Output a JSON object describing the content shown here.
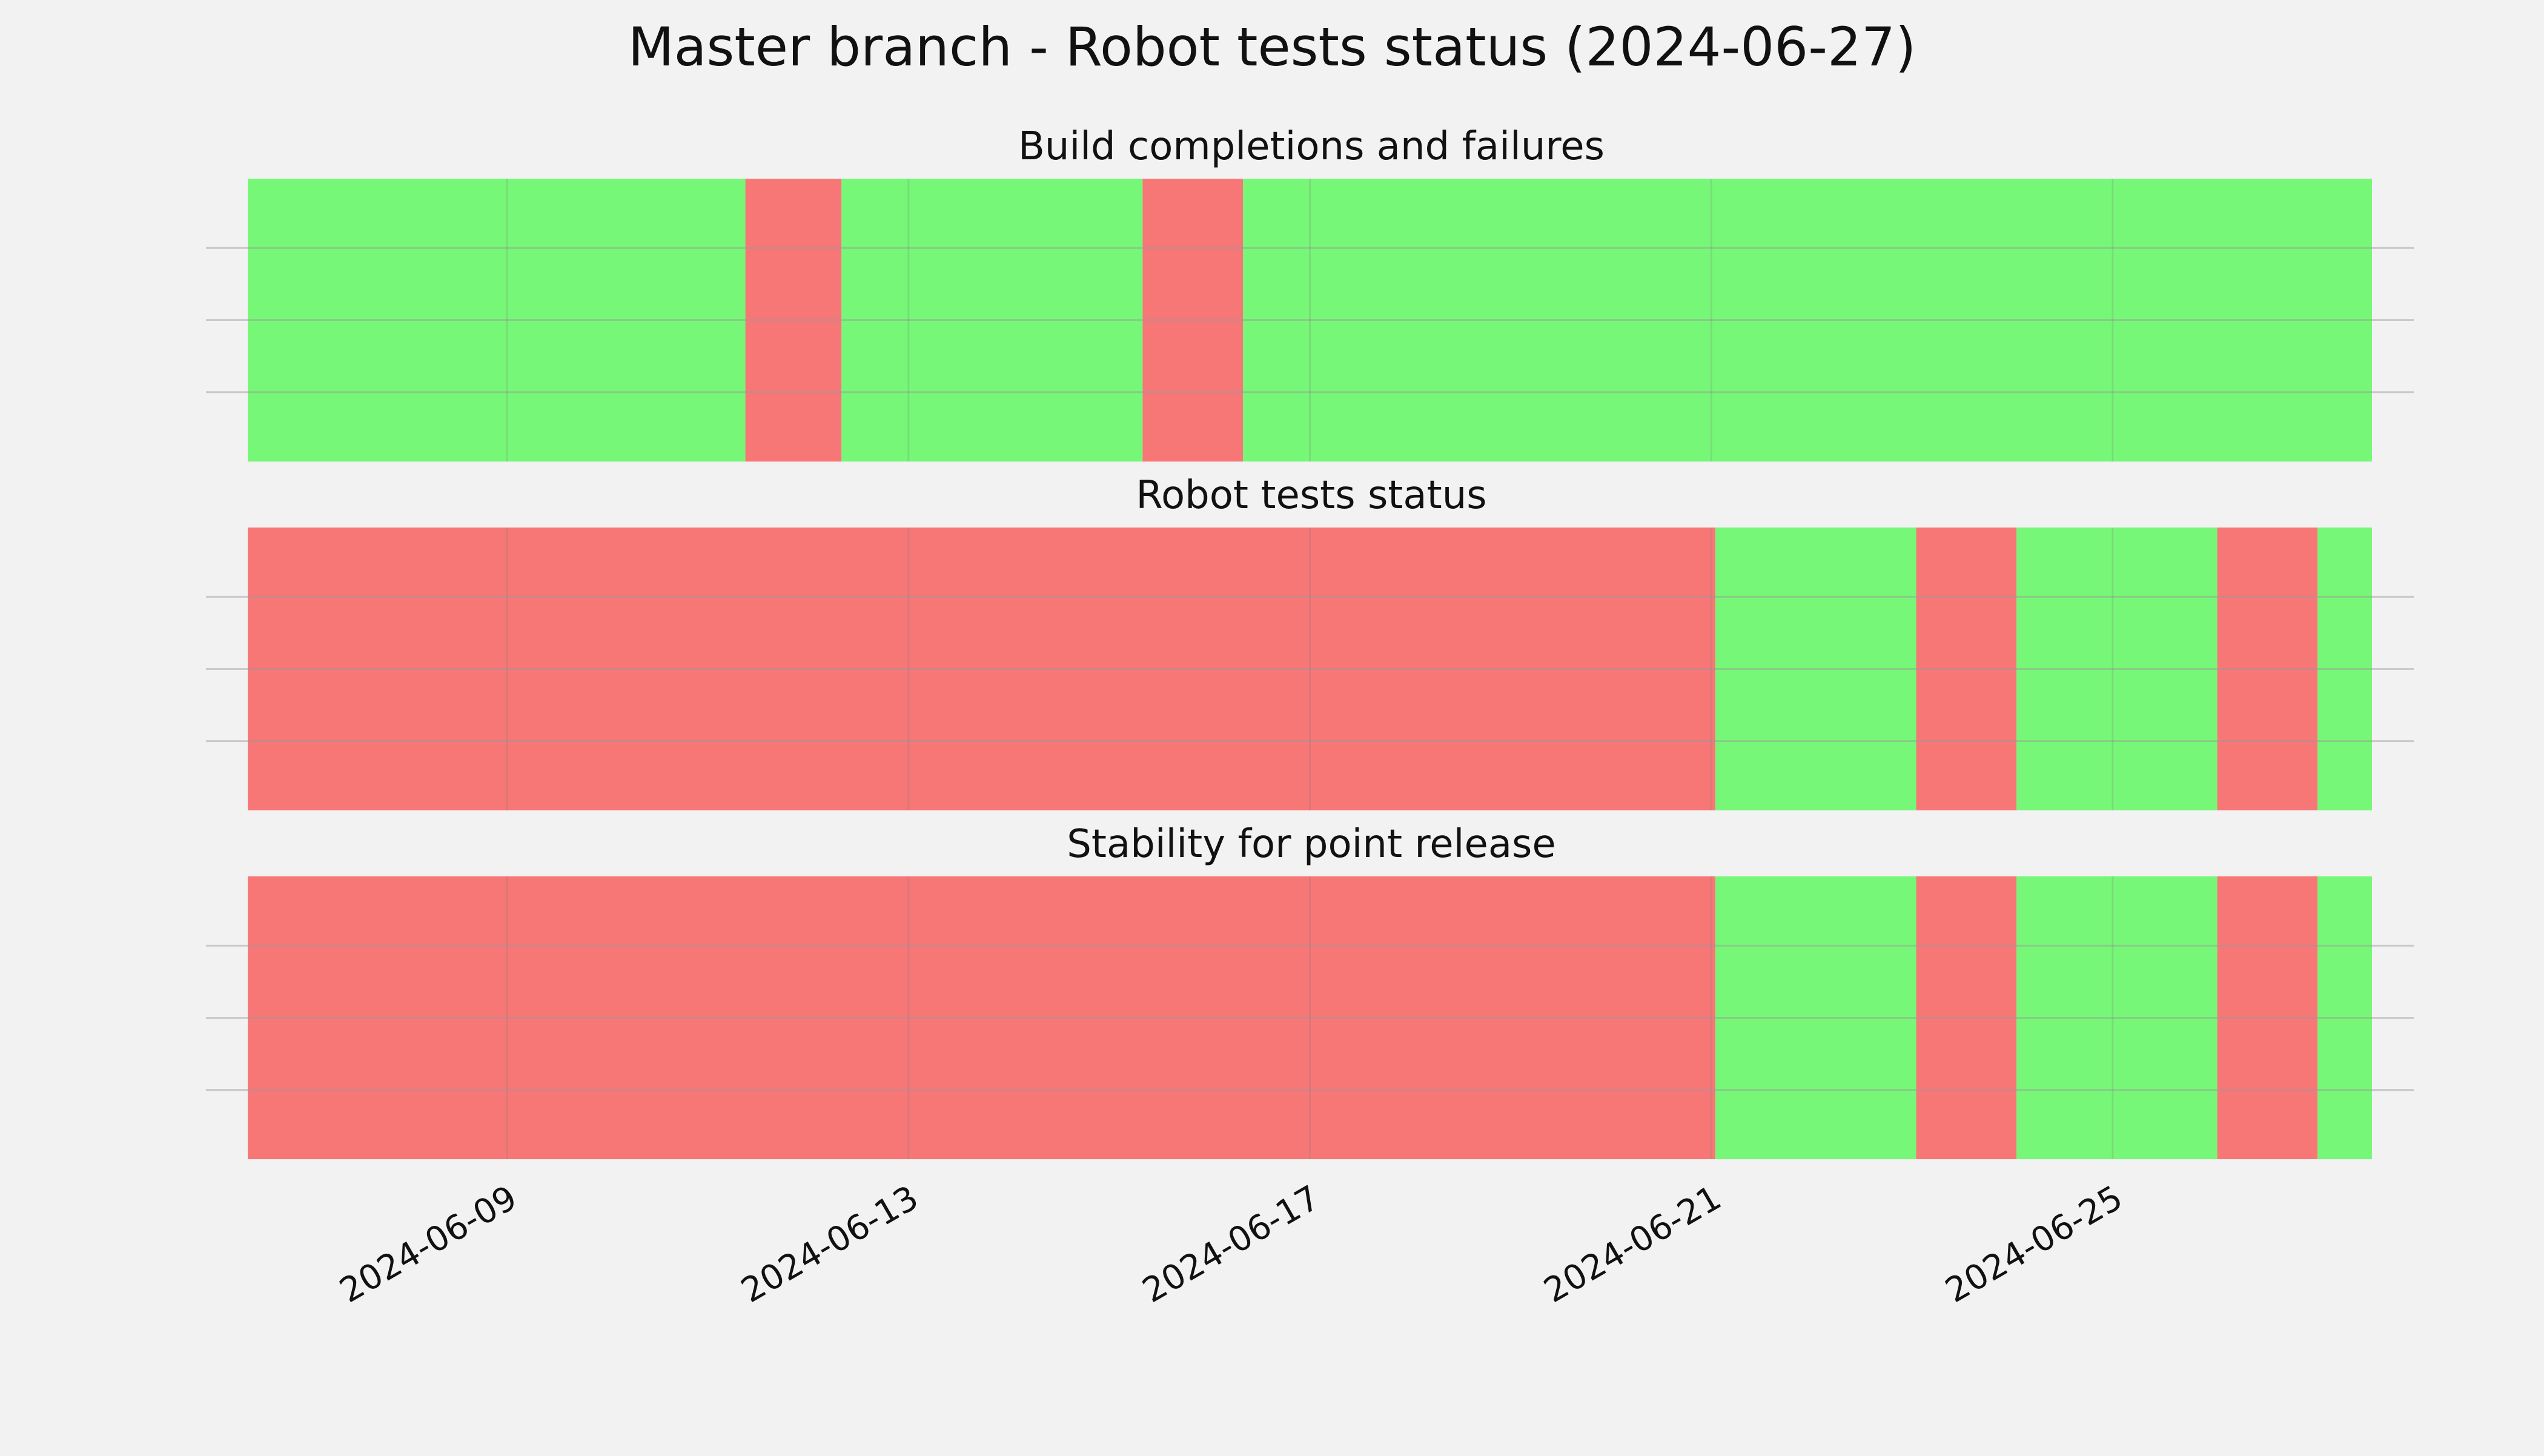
{
  "chart_data": {
    "type": "timeline",
    "title": "Master branch - Robot tests status (2024-06-27)",
    "x_axis": {
      "type": "date",
      "range": [
        "2024-06-06",
        "2024-06-28"
      ],
      "ticks": [
        "2024-06-09",
        "2024-06-13",
        "2024-06-17",
        "2024-06-21",
        "2024-06-25"
      ],
      "grid": true
    },
    "y_axis": {
      "tick_labels": false,
      "grid": true
    },
    "status_colors": {
      "pass": "#77f777",
      "fail": "#f77777"
    },
    "panels": [
      {
        "title": "Build completions and failures",
        "segments": [
          {
            "start": "2024-06-06 10:00",
            "end": "2024-06-11 09:00",
            "status": "pass"
          },
          {
            "start": "2024-06-11 09:00",
            "end": "2024-06-12 08:00",
            "status": "fail"
          },
          {
            "start": "2024-06-12 08:00",
            "end": "2024-06-15 08:00",
            "status": "pass"
          },
          {
            "start": "2024-06-15 08:00",
            "end": "2024-06-16 08:00",
            "status": "fail"
          },
          {
            "start": "2024-06-16 08:00",
            "end": "2024-06-27 14:00",
            "status": "pass"
          }
        ]
      },
      {
        "title": "Robot tests status",
        "segments": [
          {
            "start": "2024-06-06 10:00",
            "end": "2024-06-21 01:00",
            "status": "fail"
          },
          {
            "start": "2024-06-21 01:00",
            "end": "2024-06-23 01:00",
            "status": "pass"
          },
          {
            "start": "2024-06-23 01:00",
            "end": "2024-06-24 01:00",
            "status": "fail"
          },
          {
            "start": "2024-06-24 01:00",
            "end": "2024-06-26 01:00",
            "status": "pass"
          },
          {
            "start": "2024-06-26 01:00",
            "end": "2024-06-27 01:00",
            "status": "fail"
          },
          {
            "start": "2024-06-27 01:00",
            "end": "2024-06-27 14:00",
            "status": "pass"
          }
        ]
      },
      {
        "title": "Stability for point release",
        "segments": [
          {
            "start": "2024-06-06 10:00",
            "end": "2024-06-21 01:00",
            "status": "fail"
          },
          {
            "start": "2024-06-21 01:00",
            "end": "2024-06-23 01:00",
            "status": "pass"
          },
          {
            "start": "2024-06-23 01:00",
            "end": "2024-06-24 01:00",
            "status": "fail"
          },
          {
            "start": "2024-06-24 01:00",
            "end": "2024-06-26 01:00",
            "status": "pass"
          },
          {
            "start": "2024-06-26 01:00",
            "end": "2024-06-27 01:00",
            "status": "fail"
          },
          {
            "start": "2024-06-27 01:00",
            "end": "2024-06-27 14:00",
            "status": "pass"
          }
        ]
      }
    ]
  }
}
